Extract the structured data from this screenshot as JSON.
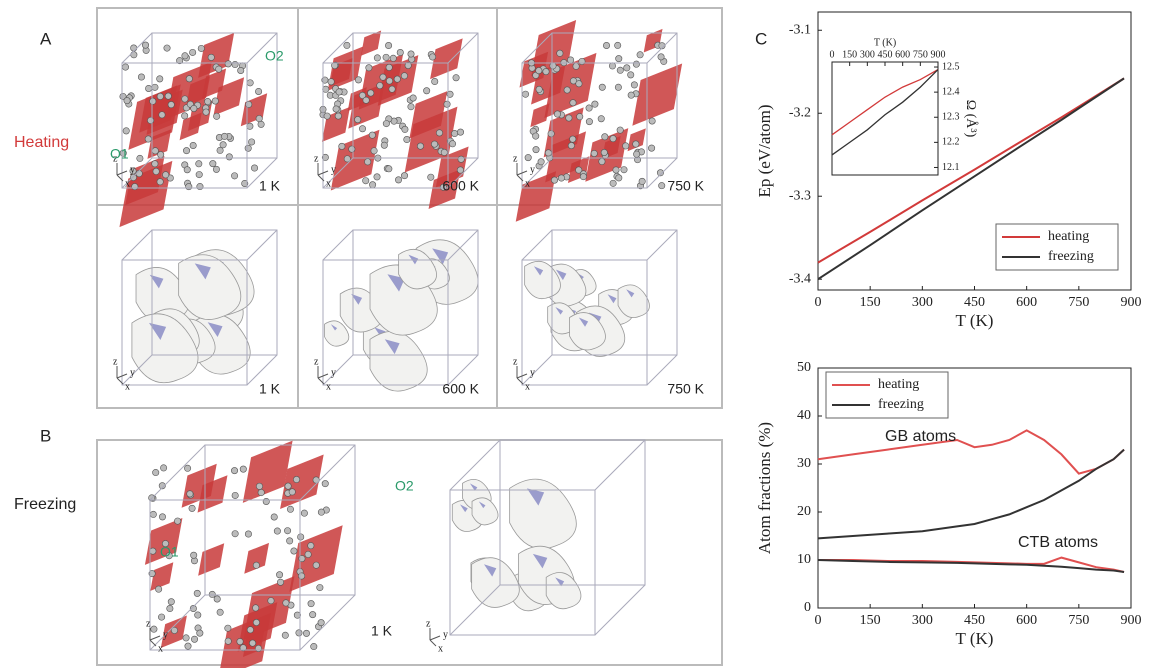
{
  "panel_a": {
    "label": "A",
    "title": "Heating",
    "temperatures": [
      "1 K",
      "600 K",
      "750 K"
    ],
    "orientation": [
      "O1",
      "O2"
    ],
    "axes": [
      "z",
      "y",
      "x"
    ]
  },
  "panel_b": {
    "label": "B",
    "title": "Freezing",
    "temperature": "1 K",
    "orientation": [
      "O1",
      "O2"
    ],
    "axes": [
      "z",
      "y",
      "x"
    ]
  },
  "panel_c": {
    "label": "C"
  },
  "chart_data": [
    {
      "type": "line",
      "xlabel": "T (K)",
      "ylabel": "Ep (eV/atom)",
      "x": [
        0,
        150,
        300,
        450,
        600,
        700,
        750,
        880
      ],
      "series": [
        {
          "name": "heating",
          "color": "#d23a3a",
          "values": [
            -3.38,
            -3.343,
            -3.305,
            -3.268,
            -3.23,
            -3.205,
            -3.192,
            -3.158
          ]
        },
        {
          "name": "freezing",
          "color": "#333333",
          "values": [
            -3.4,
            -3.359,
            -3.317,
            -3.276,
            -3.235,
            -3.208,
            -3.194,
            -3.158
          ]
        }
      ],
      "xlim": [
        0,
        900
      ],
      "xticks": [
        0,
        150,
        300,
        450,
        600,
        750,
        900
      ],
      "ylim": [
        -3.413,
        -3.078
      ],
      "yticks": [
        -3.1,
        -3.2,
        -3.3,
        -3.4
      ],
      "legend": "lower right"
    },
    {
      "type": "line",
      "xlabel": "T (K)",
      "ylabel": "Ω (Å³)",
      "x": [
        0,
        150,
        300,
        450,
        600,
        750,
        900
      ],
      "series": [
        {
          "color": "#d23a3a",
          "values": [
            12.23,
            12.28,
            12.33,
            12.38,
            12.42,
            12.45,
            12.49
          ]
        },
        {
          "color": "#333333",
          "values": [
            12.15,
            12.2,
            12.25,
            12.31,
            12.36,
            12.42,
            12.49
          ]
        }
      ],
      "xlim": [
        0,
        900
      ],
      "xticks": [
        0,
        150,
        300,
        450,
        600,
        750,
        900
      ],
      "ylim": [
        12.07,
        12.52
      ],
      "yticks": [
        12.1,
        12.2,
        12.3,
        12.4,
        12.5
      ]
    },
    {
      "type": "line",
      "xlabel": "T (K)",
      "ylabel": "Atom fractions (%)",
      "annotations": [
        "GB atoms",
        "CTB atoms"
      ],
      "x": [
        0,
        100,
        200,
        300,
        400,
        450,
        500,
        550,
        600,
        650,
        700,
        750,
        800,
        850,
        880
      ],
      "series": [
        {
          "name": "heating",
          "color": "#e05050",
          "values": [
            31,
            32,
            33,
            34,
            35,
            33.5,
            34,
            35,
            37,
            35,
            32,
            28,
            29,
            31,
            33
          ],
          "values_ctb": [
            10,
            10,
            9.8,
            9.8,
            9.6,
            9.5,
            9.4,
            9.3,
            9.2,
            9.2,
            10.5,
            9.5,
            8.5,
            8,
            7.5
          ]
        },
        {
          "name": "freezing",
          "color": "#333333",
          "values": [
            14.5,
            15,
            15.5,
            16,
            17,
            17.5,
            18.5,
            19.5,
            21,
            22.5,
            24.5,
            26.5,
            29,
            31,
            33
          ],
          "values_ctb": [
            10,
            9.8,
            9.6,
            9.5,
            9.4,
            9.3,
            9.2,
            9.1,
            9,
            8.8,
            8.6,
            8.3,
            8,
            7.8,
            7.5
          ]
        }
      ],
      "xlim": [
        0,
        900
      ],
      "xticks": [
        0,
        150,
        300,
        450,
        600,
        750,
        900
      ],
      "ylim": [
        0,
        50
      ],
      "yticks": [
        0,
        10,
        20,
        30,
        40,
        50
      ],
      "legend": "upper left"
    }
  ]
}
